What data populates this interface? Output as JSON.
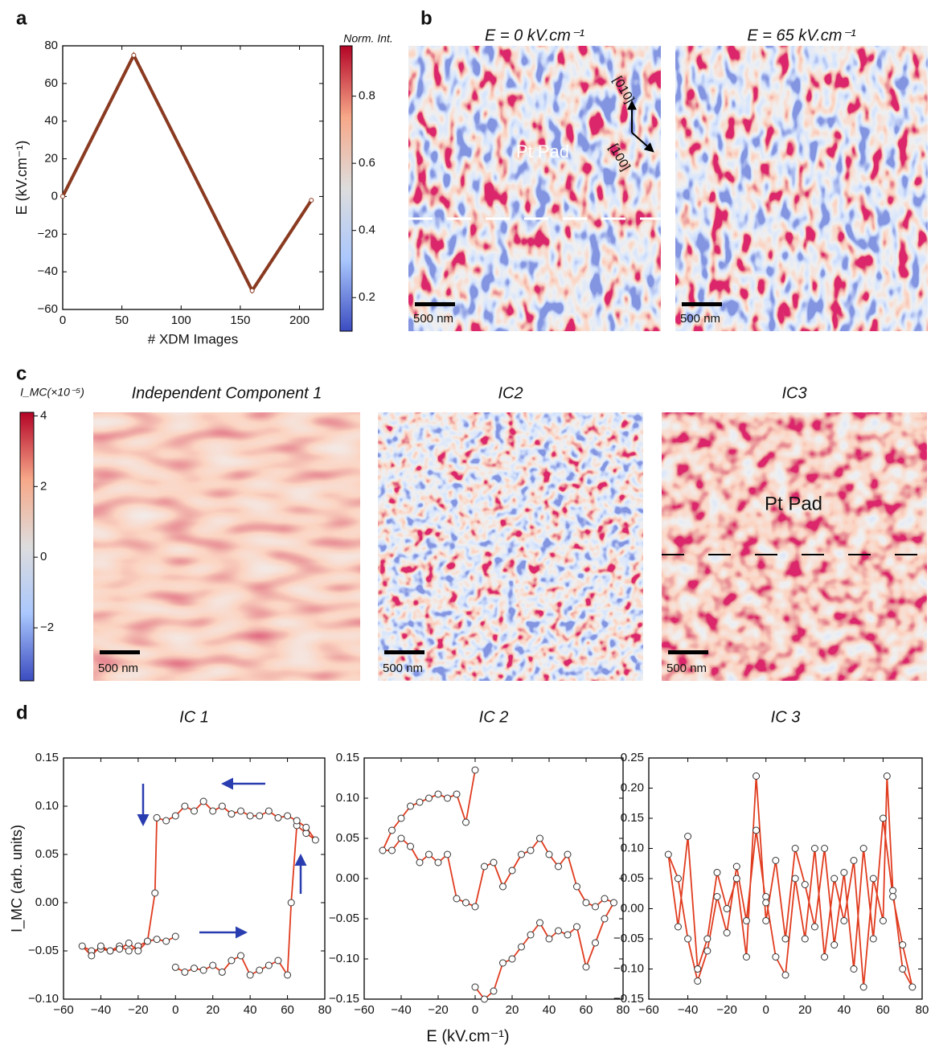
{
  "figure": {
    "panel_labels": [
      "a",
      "b",
      "c",
      "d"
    ],
    "xlabel": "E (kV.cm⁻¹)"
  },
  "chart_data": [
    {
      "type": "line",
      "xlabel": "# XDM Images",
      "ylabel": "E (kV.cm⁻¹)",
      "xlim": [
        0,
        220
      ],
      "ylim": [
        -60,
        80
      ],
      "xticks": [
        0,
        50,
        100,
        150,
        200
      ],
      "yticks": [
        {
          "value": -60,
          "label": "−60"
        },
        {
          "value": -40,
          "label": "−40"
        },
        {
          "value": -20,
          "label": "−20"
        },
        0,
        20,
        40,
        60,
        80
      ],
      "series": [
        {
          "color": "#8a3a20",
          "x": [
            0,
            60,
            160,
            210
          ],
          "values": [
            0,
            75,
            -50,
            -2
          ]
        }
      ]
    },
    {
      "type": "colorbar",
      "label": "Norm. Int.",
      "lim": [
        0.1,
        0.95
      ],
      "ticks": [
        0.2,
        0.4,
        0.6,
        0.8
      ],
      "colormap": [
        "#3b4cc0",
        "#aac7fd",
        "#dddddd",
        "#f7a889",
        "#b40426"
      ]
    },
    {
      "type": "image",
      "title": "E = 0 kV.cm⁻¹",
      "annotations": [
        "Pt Pad",
        "[010]",
        "[100]"
      ],
      "scalebar": "500 nm"
    },
    {
      "type": "image",
      "title": "E = 65 kV.cm⁻¹",
      "annotations": [],
      "scalebar": "500 nm"
    },
    {
      "type": "colorbar",
      "label": "I_MC(×10⁻⁵)",
      "lim": [
        -3.5,
        4.1
      ],
      "ticks": [
        {
          "value": -2,
          "label": "−2"
        },
        0,
        2,
        4
      ],
      "colormap": [
        "#3b4cc0",
        "#aac7fd",
        "#dddddd",
        "#f7a889",
        "#b40426"
      ]
    },
    {
      "type": "image",
      "title": "Independent Component 1",
      "annotations": [],
      "scalebar": "500 nm"
    },
    {
      "type": "image",
      "title": "IC2",
      "annotations": [],
      "scalebar": "500 nm"
    },
    {
      "type": "image",
      "title": "IC3",
      "annotations": [
        "Pt Pad"
      ],
      "scalebar": "500 nm"
    },
    {
      "type": "line",
      "title": "IC 1",
      "ylabel": "I_MC (arb. units)",
      "xlim": [
        -60,
        80
      ],
      "ylim": [
        -0.1,
        0.15
      ],
      "xticks": [
        {
          "value": -60,
          "label": "−60"
        },
        {
          "value": -40,
          "label": "−40"
        },
        {
          "value": -20,
          "label": "−20"
        },
        0,
        20,
        40,
        60,
        80
      ],
      "yticks": [
        {
          "value": -0.1,
          "label": "−0.10"
        },
        {
          "value": -0.05,
          "label": "−0.05"
        },
        {
          "value": 0,
          "label": "0.00"
        },
        0.05,
        {
          "value": 0.1,
          "label": "0.10"
        },
        0.15
      ],
      "series": [
        {
          "color": "#e03c1f",
          "x": [
            0,
            5,
            10,
            15,
            20,
            25,
            30,
            35,
            40,
            45,
            50,
            55,
            60,
            62,
            65,
            70,
            75,
            70,
            65,
            60,
            55,
            50,
            45,
            40,
            35,
            30,
            25,
            20,
            15,
            10,
            5,
            0,
            -5,
            -10,
            -11,
            -15,
            -20,
            -25,
            -30,
            -35,
            -40,
            -45,
            -50,
            -45,
            -40,
            -35,
            -30,
            -25,
            -20,
            -15,
            -10,
            -5,
            0
          ],
          "values": [
            -0.067,
            -0.072,
            -0.068,
            -0.07,
            -0.065,
            -0.072,
            -0.06,
            -0.055,
            -0.075,
            -0.07,
            -0.065,
            -0.06,
            -0.075,
            0.0,
            0.08,
            0.072,
            0.065,
            0.078,
            0.085,
            0.09,
            0.088,
            0.095,
            0.09,
            0.09,
            0.095,
            0.092,
            0.1,
            0.095,
            0.105,
            0.095,
            0.1,
            0.09,
            0.085,
            0.088,
            0.01,
            -0.04,
            -0.045,
            -0.05,
            -0.045,
            -0.05,
            -0.048,
            -0.05,
            -0.045,
            -0.055,
            -0.045,
            -0.05,
            -0.048,
            -0.042,
            -0.05,
            -0.04,
            -0.038,
            -0.04,
            -0.035
          ]
        }
      ]
    },
    {
      "type": "line",
      "title": "IC 2",
      "xlim": [
        -60,
        80
      ],
      "ylim": [
        -0.15,
        0.15
      ],
      "xticks": [
        {
          "value": -60,
          "label": "−60"
        },
        {
          "value": -40,
          "label": "−40"
        },
        {
          "value": -20,
          "label": "−20"
        },
        0,
        20,
        40,
        60,
        80
      ],
      "yticks": [
        {
          "value": -0.15,
          "label": "−0.15"
        },
        {
          "value": -0.1,
          "label": "−0.10"
        },
        {
          "value": -0.05,
          "label": "−0.05"
        },
        {
          "value": 0,
          "label": "0.00"
        },
        0.05,
        {
          "value": 0.1,
          "label": "0.10"
        },
        0.15
      ],
      "series": [
        {
          "color": "#e03c1f",
          "x": [
            0,
            5,
            10,
            15,
            20,
            25,
            30,
            35,
            40,
            45,
            50,
            55,
            60,
            65,
            70,
            75,
            70,
            65,
            60,
            55,
            50,
            45,
            40,
            35,
            30,
            25,
            20,
            15,
            10,
            5,
            0,
            -5,
            -10,
            -15,
            -20,
            -25,
            -30,
            -35,
            -40,
            -45,
            -50,
            -45,
            -40,
            -35,
            -30,
            -25,
            -20,
            -15,
            -10,
            -5,
            0
          ],
          "values": [
            -0.135,
            -0.15,
            -0.14,
            -0.105,
            -0.1,
            -0.085,
            -0.07,
            -0.055,
            -0.075,
            -0.065,
            -0.07,
            -0.06,
            -0.11,
            -0.08,
            -0.05,
            -0.03,
            -0.025,
            -0.035,
            -0.03,
            -0.01,
            0.03,
            0.015,
            0.03,
            0.05,
            0.035,
            0.03,
            0.01,
            -0.01,
            0.02,
            0.015,
            -0.035,
            -0.03,
            -0.025,
            0.03,
            0.02,
            0.03,
            0.02,
            0.04,
            0.05,
            0.035,
            0.035,
            0.06,
            0.075,
            0.09,
            0.095,
            0.1,
            0.105,
            0.1,
            0.105,
            0.07,
            0.135
          ]
        }
      ]
    },
    {
      "type": "line",
      "title": "IC 3",
      "xlim": [
        -60,
        80
      ],
      "ylim": [
        -0.15,
        0.25
      ],
      "xticks": [
        {
          "value": -60,
          "label": "−60"
        },
        {
          "value": -40,
          "label": "−40"
        },
        {
          "value": -20,
          "label": "−20"
        },
        0,
        20,
        40,
        60,
        80
      ],
      "yticks": [
        {
          "value": -0.15,
          "label": "−0.15"
        },
        {
          "value": -0.1,
          "label": "−0.10"
        },
        {
          "value": -0.05,
          "label": "−0.05"
        },
        {
          "value": 0,
          "label": "0.00"
        },
        0.05,
        {
          "value": 0.1,
          "label": "0.10"
        },
        0.15,
        {
          "value": 0.2,
          "label": "0.20"
        },
        0.25
      ],
      "series": [
        {
          "color": "#e03c1f",
          "x": [
            0,
            5,
            10,
            15,
            20,
            25,
            30,
            35,
            40,
            45,
            50,
            55,
            60,
            62,
            65,
            70,
            75,
            70,
            65,
            60,
            55,
            50,
            45,
            40,
            35,
            30,
            25,
            20,
            15,
            10,
            5,
            0,
            -5,
            -10,
            -15,
            -20,
            -25,
            -30,
            -35,
            -40,
            -45,
            -50,
            -45,
            -40,
            -35,
            -30,
            -25,
            -20,
            -15,
            -10,
            -5,
            0
          ],
          "values": [
            0.02,
            -0.08,
            -0.11,
            0.05,
            -0.05,
            0.1,
            -0.08,
            0.05,
            -0.02,
            0.08,
            -0.13,
            0.05,
            -0.02,
            0.22,
            0.03,
            -0.1,
            -0.13,
            -0.06,
            0.02,
            0.15,
            -0.05,
            0.1,
            -0.1,
            0.06,
            -0.06,
            0.1,
            -0.03,
            0.04,
            0.1,
            -0.05,
            0.08,
            -0.02,
            0.22,
            -0.08,
            0.05,
            0.0,
            0.06,
            -0.05,
            -0.1,
            0.12,
            -0.03,
            0.09,
            0.05,
            -0.05,
            -0.12,
            -0.07,
            0.02,
            -0.04,
            0.07,
            -0.02,
            0.13,
            0.01
          ]
        }
      ]
    }
  ]
}
